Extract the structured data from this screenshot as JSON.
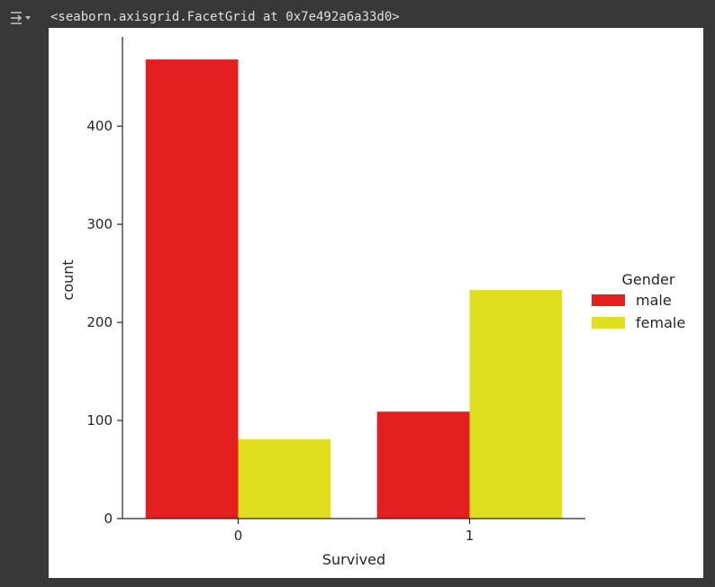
{
  "cell_output": {
    "repr_text": "<seaborn.axisgrid.FacetGrid at 0x7e492a6a33d0>",
    "toggle_icon": "output-collapse-icon"
  },
  "chart_data": {
    "type": "bar",
    "title": "",
    "xlabel": "Survived",
    "ylabel": "count",
    "categories": [
      "0",
      "1"
    ],
    "series": [
      {
        "name": "male",
        "values": [
          468,
          109
        ],
        "color": "#e31f1f"
      },
      {
        "name": "female",
        "values": [
          81,
          233
        ],
        "color": "#e0df1f"
      }
    ],
    "yticks": [
      0,
      100,
      200,
      300,
      400
    ],
    "ytick_labels": [
      "0",
      "100",
      "200",
      "300",
      "400"
    ],
    "ylim": [
      0,
      491
    ],
    "grid": false,
    "legend": {
      "title": "Gender",
      "placement": "right-outside"
    }
  }
}
